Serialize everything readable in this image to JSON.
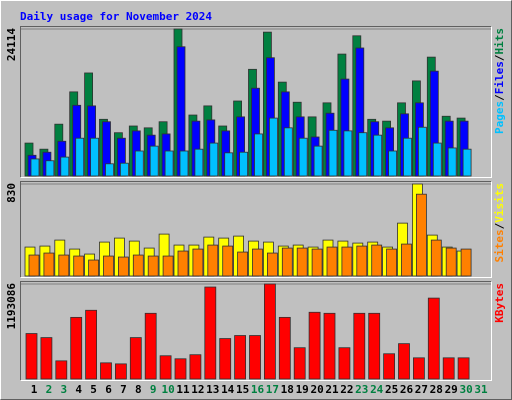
{
  "chart_data": [
    {
      "type": "grouped-offset-bar",
      "title": "Daily usage for November 2024",
      "series": [
        {
          "name": "Hits",
          "color": "#008040",
          "values": [
            5400,
            4400,
            8500,
            13800,
            16900,
            9300,
            7100,
            8200,
            7900,
            8900,
            24114,
            10000,
            11500,
            8200,
            12300,
            17500,
            23600,
            15400,
            12100,
            9700,
            12000,
            20000,
            23000,
            9300,
            9000,
            12000,
            15600,
            19500,
            9800,
            9500,
            0
          ]
        },
        {
          "name": "Files",
          "color": "#0000ff",
          "values": [
            3400,
            3900,
            5700,
            11600,
            11500,
            8900,
            6200,
            7400,
            6700,
            6900,
            21200,
            9000,
            9200,
            7400,
            9700,
            14400,
            19400,
            13800,
            9700,
            6400,
            10300,
            15900,
            21000,
            8900,
            7900,
            10200,
            12000,
            17200,
            9000,
            9000,
            0
          ]
        },
        {
          "name": "Pages",
          "color": "#00c0ff",
          "values": [
            2800,
            2500,
            3100,
            6200,
            6200,
            2000,
            2100,
            4100,
            4900,
            4100,
            4100,
            4400,
            5400,
            3800,
            3900,
            6900,
            9500,
            7900,
            6200,
            4900,
            7500,
            7400,
            7100,
            6700,
            4100,
            6200,
            8000,
            5400,
            4600,
            4400,
            0
          ]
        }
      ],
      "legend_separator": "/",
      "ylim": [
        0,
        24114
      ],
      "yticks": [
        24114
      ]
    },
    {
      "type": "grouped-offset-bar",
      "series": [
        {
          "name": "Visits",
          "color": "#ffff00",
          "values": [
            261,
            270,
            324,
            243,
            198,
            306,
            342,
            315,
            252,
            378,
            279,
            279,
            351,
            342,
            360,
            315,
            306,
            270,
            279,
            261,
            324,
            315,
            297,
            306,
            261,
            477,
            830,
            369,
            261,
            225,
            0
          ]
        },
        {
          "name": "Sites",
          "color": "#ff8000",
          "values": [
            189,
            207,
            189,
            180,
            144,
            180,
            171,
            189,
            180,
            180,
            225,
            243,
            279,
            270,
            216,
            243,
            207,
            252,
            252,
            243,
            261,
            261,
            270,
            279,
            243,
            288,
            738,
            324,
            252,
            243,
            0
          ]
        }
      ],
      "legend_separator": "/",
      "ylim": [
        0,
        830
      ],
      "yticks": [
        830
      ]
    },
    {
      "type": "bar",
      "categories": [
        "1",
        "2",
        "3",
        "4",
        "5",
        "6",
        "7",
        "8",
        "9",
        "10",
        "11",
        "12",
        "13",
        "14",
        "15",
        "16",
        "17",
        "18",
        "19",
        "20",
        "21",
        "22",
        "23",
        "24",
        "25",
        "26",
        "27",
        "28",
        "29",
        "30",
        "31"
      ],
      "category_colors": [
        "#000000",
        "#008040",
        "#008040",
        "#000000",
        "#000000",
        "#000000",
        "#000000",
        "#000000",
        "#008040",
        "#008040",
        "#000000",
        "#000000",
        "#000000",
        "#000000",
        "#000000",
        "#008040",
        "#008040",
        "#000000",
        "#000000",
        "#000000",
        "#000000",
        "#000000",
        "#008040",
        "#008040",
        "#000000",
        "#000000",
        "#000000",
        "#000000",
        "#000000",
        "#008040",
        "#008040"
      ],
      "series": [
        {
          "name": "KBytes",
          "color": "#ff0000",
          "values": [
            571000,
            520000,
            228000,
            774000,
            863000,
            203000,
            190000,
            520000,
            825000,
            292000,
            254000,
            305000,
            1155000,
            508000,
            546000,
            546000,
            1193086,
            774000,
            393000,
            838000,
            825000,
            393000,
            825000,
            825000,
            317000,
            444000,
            266000,
            1016000,
            266000,
            266000,
            0
          ]
        }
      ],
      "ylim": [
        0,
        1193086
      ],
      "yticks": [
        1193086
      ]
    }
  ]
}
